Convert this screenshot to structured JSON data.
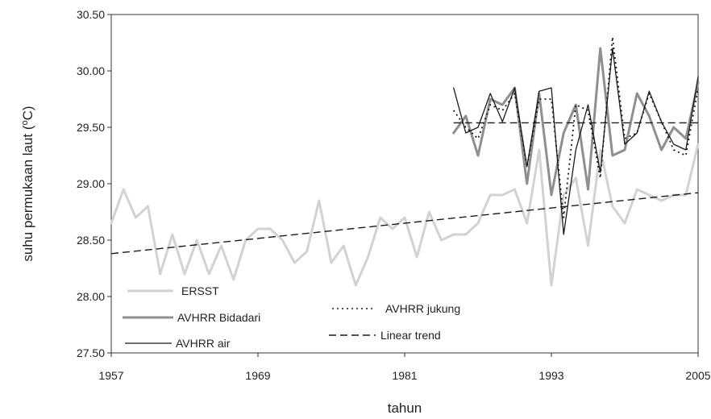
{
  "chart_data": {
    "type": "line",
    "xlabel": "tahun",
    "ylabel": "suhu permukaan laut (°C)",
    "ylabel_parts": [
      "suhu permukaan laut (",
      "o",
      "C)"
    ],
    "xlim": [
      1957,
      2005
    ],
    "ylim": [
      27.5,
      30.5
    ],
    "x_ticks": [
      1957,
      1969,
      1981,
      1993,
      2005
    ],
    "y_ticks": [
      27.5,
      28.0,
      28.5,
      29.0,
      29.5,
      30.0,
      30.5
    ],
    "y_tick_labels": [
      "27.50",
      "28.00",
      "28.50",
      "29.00",
      "29.50",
      "30.00",
      "30.50"
    ],
    "grid": false,
    "legend_position": "bottom-left",
    "series": [
      {
        "name": "ERSST",
        "color": "#d2d2d2",
        "style": "solid-thick",
        "x": [
          1957,
          1958,
          1959,
          1960,
          1961,
          1962,
          1963,
          1964,
          1965,
          1966,
          1967,
          1968,
          1969,
          1970,
          1971,
          1972,
          1973,
          1974,
          1975,
          1976,
          1977,
          1978,
          1979,
          1980,
          1981,
          1982,
          1983,
          1984,
          1985,
          1986,
          1987,
          1988,
          1989,
          1990,
          1991,
          1992,
          1993,
          1994,
          1995,
          1996,
          1997,
          1998,
          1999,
          2000,
          2001,
          2002,
          2003,
          2004,
          2005
        ],
        "y": [
          28.65,
          28.95,
          28.7,
          28.8,
          28.2,
          28.55,
          28.2,
          28.5,
          28.2,
          28.45,
          28.15,
          28.5,
          28.6,
          28.6,
          28.5,
          28.3,
          28.4,
          28.85,
          28.3,
          28.45,
          28.1,
          28.35,
          28.7,
          28.6,
          28.7,
          28.35,
          28.75,
          28.5,
          28.55,
          28.55,
          28.65,
          28.9,
          28.9,
          28.95,
          28.65,
          29.3,
          28.1,
          28.9,
          29.05,
          28.45,
          29.3,
          28.8,
          28.65,
          28.95,
          28.9,
          28.85,
          28.9,
          28.9,
          29.35
        ]
      },
      {
        "name": "AVHRR Bidadari",
        "color": "#8f8f8f",
        "style": "solid-medium",
        "x": [
          1985,
          1986,
          1987,
          1988,
          1989,
          1990,
          1991,
          1992,
          1993,
          1994,
          1995,
          1996,
          1997,
          1998,
          1999,
          2000,
          2001,
          2002,
          2003,
          2004,
          2005
        ],
        "y": [
          29.45,
          29.6,
          29.25,
          29.75,
          29.7,
          29.85,
          29.0,
          29.8,
          28.9,
          29.45,
          29.7,
          28.95,
          30.2,
          29.25,
          29.3,
          29.8,
          29.6,
          29.3,
          29.5,
          29.4,
          29.9
        ]
      },
      {
        "name": "AVHRR air",
        "color": "#1a1a1a",
        "style": "solid-thin",
        "x": [
          1985,
          1986,
          1987,
          1988,
          1989,
          1990,
          1991,
          1992,
          1993,
          1994,
          1995,
          1996,
          1997,
          1998,
          1999,
          2000,
          2001,
          2002,
          2003,
          2004,
          2005
        ],
        "y": [
          29.85,
          29.45,
          29.5,
          29.8,
          29.55,
          29.85,
          29.15,
          29.82,
          29.85,
          28.55,
          29.3,
          29.7,
          29.1,
          30.2,
          29.35,
          29.45,
          29.82,
          29.55,
          29.35,
          29.3,
          29.95
        ]
      },
      {
        "name": "AVHRR jukung",
        "color": "#1a1a1a",
        "style": "dotted",
        "x": [
          1985,
          1986,
          1987,
          1988,
          1989,
          1990,
          1991,
          1992,
          1993,
          1994,
          1995,
          1996,
          1997,
          1998,
          1999,
          2000,
          2001,
          2002,
          2003,
          2004,
          2005
        ],
        "y": [
          29.65,
          29.5,
          29.4,
          29.7,
          29.65,
          29.8,
          29.15,
          29.75,
          29.75,
          28.7,
          29.7,
          29.65,
          29.05,
          30.3,
          29.4,
          29.45,
          29.8,
          29.55,
          29.3,
          29.25,
          29.85
        ]
      },
      {
        "name": "Linear trend",
        "color": "#1a1a1a",
        "style": "dashed",
        "x": [
          1957,
          2005
        ],
        "y": [
          28.38,
          28.92
        ]
      },
      {
        "name": "",
        "color": "#1a1a1a",
        "style": "dashed",
        "x": [
          1985,
          2005
        ],
        "y": [
          29.54,
          29.54
        ]
      }
    ]
  }
}
